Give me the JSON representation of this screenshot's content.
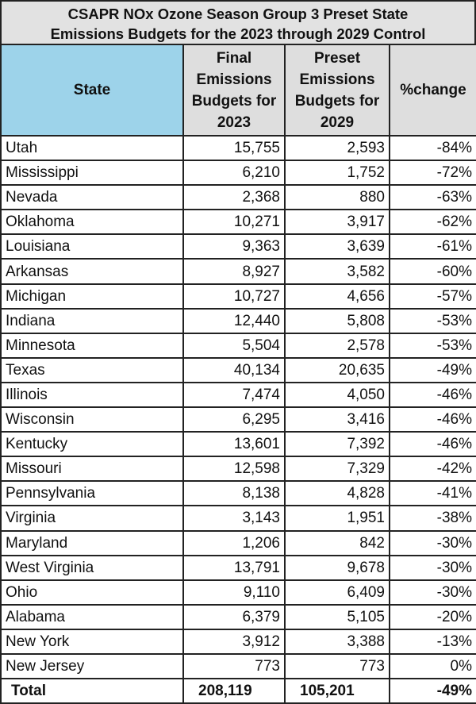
{
  "title": {
    "line1": "CSAPR NOx Ozone Season Group 3 Preset State",
    "line2": "Emissions Budgets for the 2023 through 2029 Control"
  },
  "headers": [
    "State",
    "Final Emissions Budgets for 2023",
    "Preset Emissions Budgets for 2029",
    "%change"
  ],
  "colors": {
    "state_header": "#9dd3ea",
    "header": "#dedede",
    "title_bg": "#e2e2e2"
  },
  "rows": [
    [
      "Utah",
      "15,755",
      "2,593",
      "-84%"
    ],
    [
      "Mississippi",
      "6,210",
      "1,752",
      "-72%"
    ],
    [
      "Nevada",
      "2,368",
      "880",
      "-63%"
    ],
    [
      "Oklahoma",
      "10,271",
      "3,917",
      "-62%"
    ],
    [
      "Louisiana",
      "9,363",
      "3,639",
      "-61%"
    ],
    [
      "Arkansas",
      "8,927",
      "3,582",
      "-60%"
    ],
    [
      "Michigan",
      "10,727",
      "4,656",
      "-57%"
    ],
    [
      "Indiana",
      "12,440",
      "5,808",
      "-53%"
    ],
    [
      "Minnesota",
      "5,504",
      "2,578",
      "-53%"
    ],
    [
      "Texas",
      "40,134",
      "20,635",
      "-49%"
    ],
    [
      "Illinois",
      "7,474",
      "4,050",
      "-46%"
    ],
    [
      "Wisconsin",
      "6,295",
      "3,416",
      "-46%"
    ],
    [
      "Kentucky",
      "13,601",
      "7,392",
      "-46%"
    ],
    [
      "Missouri",
      "12,598",
      "7,329",
      "-42%"
    ],
    [
      "Pennsylvania",
      "8,138",
      "4,828",
      "-41%"
    ],
    [
      "Virginia",
      "3,143",
      "1,951",
      "-38%"
    ],
    [
      "Maryland",
      "1,206",
      "842",
      "-30%"
    ],
    [
      "West Virginia",
      "13,791",
      "9,678",
      "-30%"
    ],
    [
      "Ohio",
      "9,110",
      "6,409",
      "-30%"
    ],
    [
      "Alabama",
      "6,379",
      "5,105",
      "-20%"
    ],
    [
      "New York",
      "3,912",
      "3,388",
      "-13%"
    ],
    [
      "New Jersey",
      "773",
      "773",
      "0%"
    ]
  ],
  "total": [
    "Total",
    "208,119",
    "105,201",
    "-49%"
  ]
}
